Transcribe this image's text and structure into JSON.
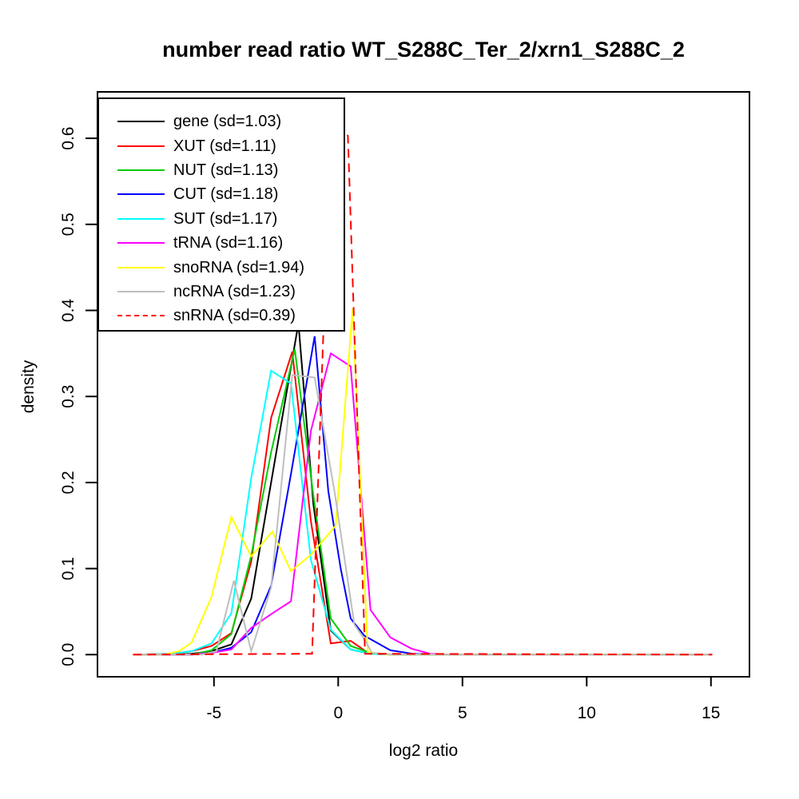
{
  "chart_data": {
    "type": "line",
    "title": "number read ratio WT_S288C_Ter_2/xrn1_S288C_2",
    "xlabel": "log2 ratio",
    "ylabel": "density",
    "grid": false,
    "legend_position": "top-left",
    "x_axis": {
      "tick_values": [
        -5,
        0,
        5,
        10,
        15
      ],
      "tick_labels": [
        "-5",
        "0",
        "5",
        "10",
        "15"
      ],
      "range": [
        -9.69,
        16.55
      ]
    },
    "y_axis": {
      "tick_values": [
        0,
        0.1,
        0.2,
        0.3,
        0.4,
        0.5,
        0.6
      ],
      "tick_labels": [
        "0.0",
        "0.1",
        "0.2",
        "0.3",
        "0.4",
        "0.5",
        "0.6"
      ],
      "range": [
        -0.026,
        0.654
      ]
    },
    "series": [
      {
        "name": "gene",
        "sd": 1.03,
        "label": "gene (sd=1.03)",
        "color": "#000000",
        "linestyle": "solid",
        "points": [
          [
            -8.2,
            0
          ],
          [
            -6.7,
            0
          ],
          [
            -5.9,
            0.001
          ],
          [
            -5.1,
            0.004
          ],
          [
            -4.3,
            0.012
          ],
          [
            -3.5,
            0.065
          ],
          [
            -2.7,
            0.2
          ],
          [
            -1.6,
            0.385
          ],
          [
            -1.0,
            0.175
          ],
          [
            -0.3,
            0.028
          ],
          [
            0.5,
            0.006
          ],
          [
            1.3,
            0.001
          ],
          [
            2.2,
            0
          ],
          [
            15.05,
            0
          ]
        ]
      },
      {
        "name": "XUT",
        "sd": 1.11,
        "label": "XUT (sd=1.11)",
        "color": "#FF0000",
        "linestyle": "solid",
        "points": [
          [
            -8.2,
            0
          ],
          [
            -6.7,
            0.001
          ],
          [
            -5.9,
            0.004
          ],
          [
            -5.1,
            0.01
          ],
          [
            -4.3,
            0.025
          ],
          [
            -3.5,
            0.108
          ],
          [
            -2.7,
            0.275
          ],
          [
            -1.85,
            0.352
          ],
          [
            -1.1,
            0.155
          ],
          [
            -0.3,
            0.013
          ],
          [
            0.5,
            0.016
          ],
          [
            1.25,
            0.001
          ],
          [
            2.1,
            0
          ],
          [
            15.05,
            0
          ]
        ]
      },
      {
        "name": "NUT",
        "sd": 1.13,
        "label": "NUT (sd=1.13)",
        "color": "#00CD00",
        "linestyle": "solid",
        "points": [
          [
            -8.2,
            0
          ],
          [
            -5.9,
            0
          ],
          [
            -5.1,
            0.005
          ],
          [
            -4.3,
            0.024
          ],
          [
            -3.5,
            0.115
          ],
          [
            -2.7,
            0.235
          ],
          [
            -1.75,
            0.355
          ],
          [
            -1.0,
            0.185
          ],
          [
            -0.3,
            0.042
          ],
          [
            0.5,
            0.01
          ],
          [
            1.3,
            0.002
          ],
          [
            2.2,
            0
          ],
          [
            15.05,
            0
          ]
        ]
      },
      {
        "name": "CUT",
        "sd": 1.18,
        "label": "CUT (sd=1.18)",
        "color": "#0000FF",
        "linestyle": "solid",
        "points": [
          [
            -8.2,
            0
          ],
          [
            -5.9,
            0
          ],
          [
            -5.1,
            0.002
          ],
          [
            -4.3,
            0.008
          ],
          [
            -3.5,
            0.026
          ],
          [
            -2.7,
            0.08
          ],
          [
            -1.9,
            0.21
          ],
          [
            -0.95,
            0.37
          ],
          [
            -0.4,
            0.19
          ],
          [
            0.1,
            0.1
          ],
          [
            0.5,
            0.042
          ],
          [
            1.05,
            0.022
          ],
          [
            2.1,
            0.005
          ],
          [
            3.0,
            0.001
          ],
          [
            3.8,
            0
          ],
          [
            15.05,
            0
          ]
        ]
      },
      {
        "name": "SUT",
        "sd": 1.17,
        "label": "SUT (sd=1.17)",
        "color": "#00FFFF",
        "linestyle": "solid",
        "points": [
          [
            -8.2,
            0
          ],
          [
            -6.7,
            0.001
          ],
          [
            -5.9,
            0.004
          ],
          [
            -5.1,
            0.013
          ],
          [
            -4.3,
            0.048
          ],
          [
            -3.5,
            0.205
          ],
          [
            -2.7,
            0.33
          ],
          [
            -1.9,
            0.315
          ],
          [
            -1.1,
            0.11
          ],
          [
            -0.3,
            0.029
          ],
          [
            0.5,
            0.006
          ],
          [
            1.3,
            0.001
          ],
          [
            2.1,
            0
          ],
          [
            15.05,
            0
          ]
        ]
      },
      {
        "name": "tRNA",
        "sd": 1.16,
        "label": "tRNA (sd=1.16)",
        "color": "#FF00FF",
        "linestyle": "solid",
        "points": [
          [
            -8.2,
            0
          ],
          [
            -5.9,
            0
          ],
          [
            -5.1,
            0.002
          ],
          [
            -4.3,
            0.006
          ],
          [
            -3.5,
            0.031
          ],
          [
            -2.7,
            0.047
          ],
          [
            -1.9,
            0.062
          ],
          [
            -1.1,
            0.26
          ],
          [
            -0.3,
            0.35
          ],
          [
            0.5,
            0.335
          ],
          [
            1.3,
            0.052
          ],
          [
            2.1,
            0.02
          ],
          [
            2.95,
            0.007
          ],
          [
            3.7,
            0.001
          ],
          [
            4.5,
            0
          ],
          [
            15.05,
            0
          ]
        ]
      },
      {
        "name": "snoRNA",
        "sd": 1.94,
        "label": "snoRNA (sd=1.94)",
        "color": "#FFFF00",
        "linestyle": "solid",
        "points": [
          [
            -8.2,
            0
          ],
          [
            -7.0,
            0
          ],
          [
            -6.4,
            0.004
          ],
          [
            -5.9,
            0.014
          ],
          [
            -5.1,
            0.067
          ],
          [
            -4.3,
            0.16
          ],
          [
            -3.5,
            0.114
          ],
          [
            -2.65,
            0.143
          ],
          [
            -1.9,
            0.097
          ],
          [
            -1.1,
            0.116
          ],
          [
            -0.1,
            0.15
          ],
          [
            0.58,
            0.402
          ],
          [
            1.19,
            0.003
          ],
          [
            2.0,
            0
          ],
          [
            15.05,
            0
          ]
        ]
      },
      {
        "name": "ncRNA",
        "sd": 1.23,
        "label": "ncRNA (sd=1.23)",
        "color": "#BEBEBE",
        "linestyle": "solid",
        "points": [
          [
            -8.2,
            0
          ],
          [
            -5.5,
            0
          ],
          [
            -4.9,
            0.004
          ],
          [
            -4.2,
            0.086
          ],
          [
            -3.5,
            0.004
          ],
          [
            -2.7,
            0.078
          ],
          [
            -1.85,
            0.325
          ],
          [
            -0.95,
            0.322
          ],
          [
            -0.15,
            0.19
          ],
          [
            0.65,
            0.035
          ],
          [
            1.1,
            0.016
          ],
          [
            1.35,
            0.002
          ],
          [
            2.2,
            0
          ],
          [
            15.05,
            0
          ]
        ]
      },
      {
        "name": "snRNA",
        "sd": 0.39,
        "label": "snRNA (sd=0.39)",
        "color": "#FF0000",
        "linestyle": "dashed",
        "points": [
          [
            -8.26,
            0
          ],
          [
            -1.05,
            0.001
          ],
          [
            -0.3,
            0.62
          ],
          [
            0.39,
            0.603
          ],
          [
            1.08,
            0.001
          ],
          [
            15.05,
            0
          ]
        ]
      }
    ]
  }
}
